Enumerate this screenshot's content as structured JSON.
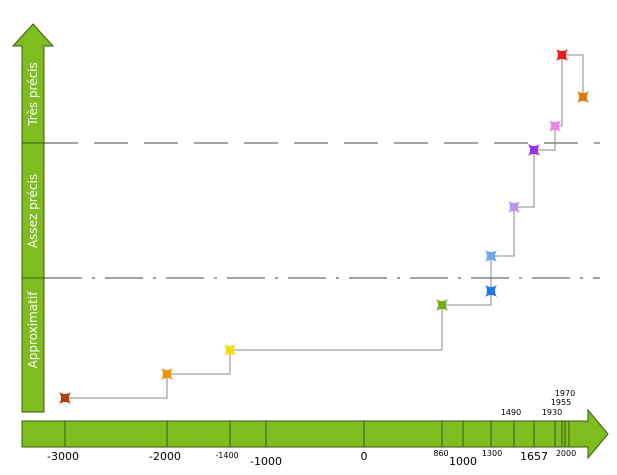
{
  "y_axis": {
    "levels": [
      {
        "id": "tres-precis",
        "label": "Très précis"
      },
      {
        "id": "assez-precis",
        "label": "Assez précis"
      },
      {
        "id": "approximatif",
        "label": "Approximatif"
      }
    ]
  },
  "x_axis": {
    "ticks": [
      {
        "label": "-3000",
        "value": -3000,
        "size": "big"
      },
      {
        "label": "-2000",
        "value": -2000,
        "size": "big"
      },
      {
        "label": "-1400",
        "value": -1400,
        "size": "small"
      },
      {
        "label": "-1000",
        "value": -1000,
        "size": "big"
      },
      {
        "label": "0",
        "value": 0,
        "size": "big"
      },
      {
        "label": "860",
        "value": 860,
        "size": "small"
      },
      {
        "label": "1000",
        "value": 1000,
        "size": "big"
      },
      {
        "label": "1300",
        "value": 1300,
        "size": "small"
      },
      {
        "label": "1490",
        "value": 1490,
        "size": "small"
      },
      {
        "label": "1657",
        "value": 1657,
        "size": "big"
      },
      {
        "label": "1930",
        "value": 1930,
        "size": "small"
      },
      {
        "label": "1955",
        "value": 1955,
        "size": "small"
      },
      {
        "label": "1970",
        "value": 1970,
        "size": "small"
      },
      {
        "label": "2000",
        "value": 2000,
        "size": "small"
      }
    ]
  },
  "markers": [
    {
      "color": "#b33a12"
    },
    {
      "color": "#e8950a"
    },
    {
      "color": "#f0e010"
    },
    {
      "color": "#7aaa1a"
    },
    {
      "color": "#2277e8"
    },
    {
      "color": "#72a8ee"
    },
    {
      "color": "#b895f0"
    },
    {
      "color": "#9933e6"
    },
    {
      "color": "#e888e6"
    },
    {
      "color": "#ee1818"
    },
    {
      "color": "#dd7a10"
    }
  ],
  "colors": {
    "arrow_fill": "#7fbc1e",
    "arrow_stroke": "#3a5a10",
    "connector": "#8a8a8a",
    "dash": "#444444"
  }
}
